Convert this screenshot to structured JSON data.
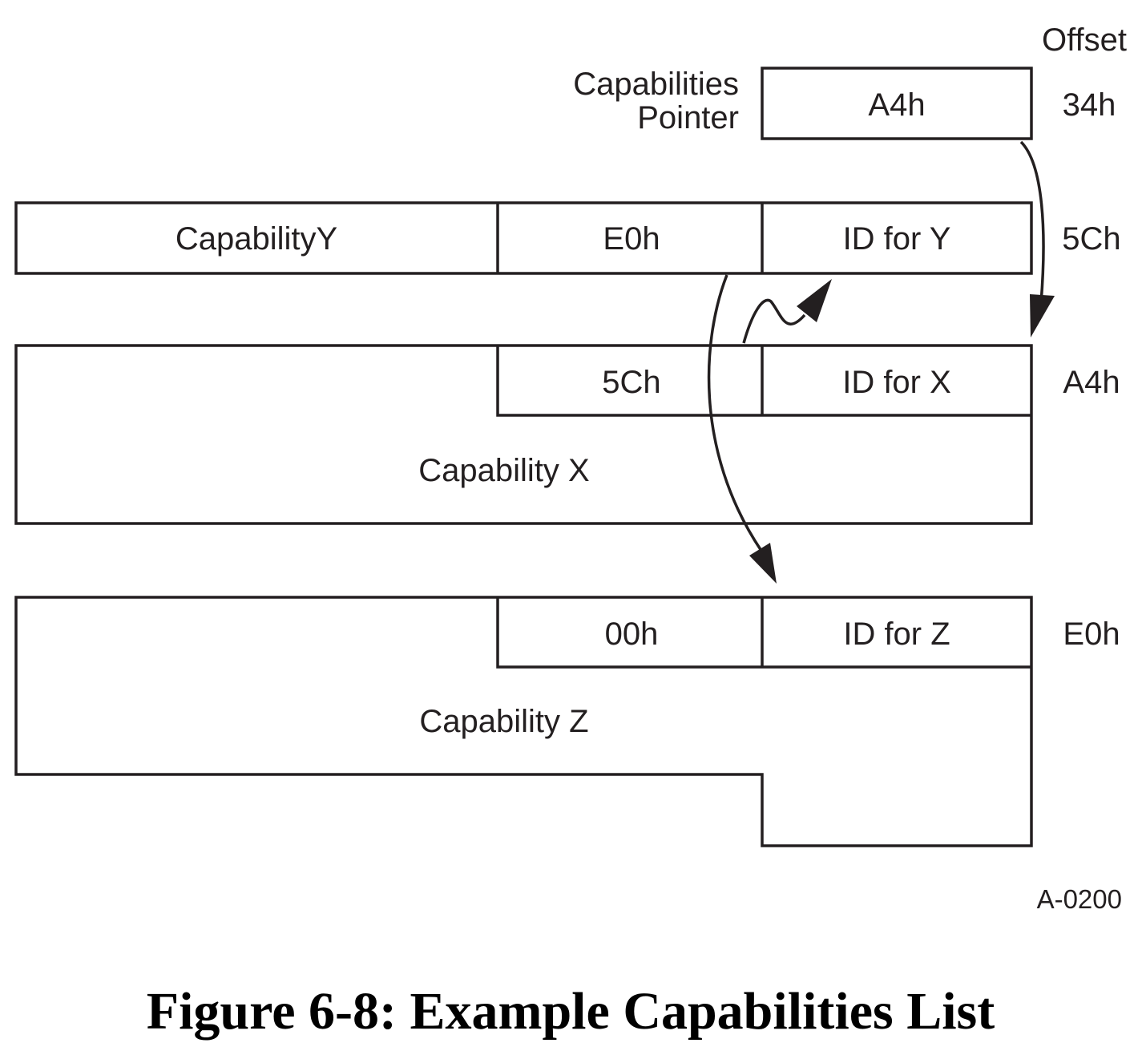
{
  "offset_header": "Offset",
  "pointer": {
    "label_line1": "Capabilities",
    "label_line2": "Pointer",
    "value": "A4h",
    "offset": "34h"
  },
  "capability_y": {
    "body_label": "CapabilityY",
    "next_ptr": "E0h",
    "id": "ID for Y",
    "offset": "5Ch"
  },
  "capability_x": {
    "body_label": "Capability X",
    "next_ptr": "5Ch",
    "id": "ID for X",
    "offset": "A4h"
  },
  "capability_z": {
    "body_label": "Capability Z",
    "next_ptr": "00h",
    "id": "ID for Z",
    "offset": "E0h"
  },
  "figure_code": "A-0200",
  "caption": "Figure 6-8:  Example Capabilities List",
  "colors": {
    "line": "#231f20",
    "background": "#ffffff"
  }
}
